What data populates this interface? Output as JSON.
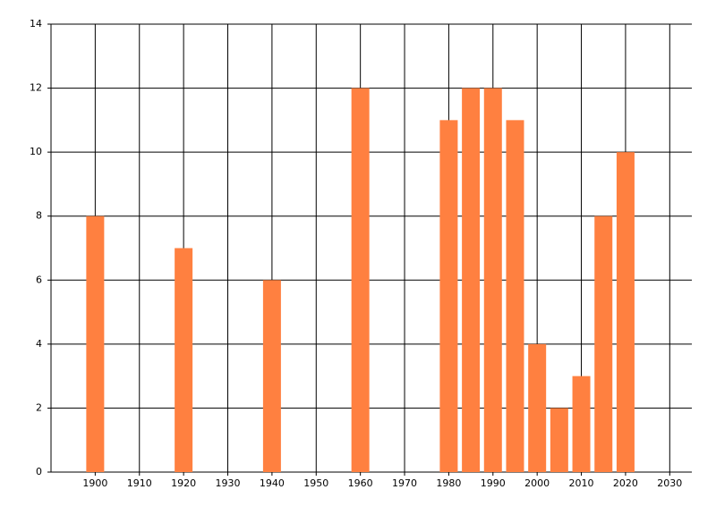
{
  "chart_data": {
    "type": "bar",
    "x": [
      1900,
      1920,
      1940,
      1960,
      1980,
      1985,
      1990,
      1995,
      2000,
      2005,
      2010,
      2015,
      2020
    ],
    "values": [
      8,
      7,
      6,
      12,
      11,
      12,
      12,
      11,
      4,
      2,
      3,
      8,
      10
    ],
    "color": "#ff8040",
    "xlim": [
      1890,
      2035
    ],
    "xticks": [
      1900,
      1910,
      1920,
      1930,
      1940,
      1950,
      1960,
      1970,
      1980,
      1990,
      2000,
      2010,
      2020,
      2030
    ],
    "ylim": [
      0,
      14
    ],
    "yticks": [
      0,
      2,
      4,
      6,
      8,
      10,
      12,
      14
    ],
    "grid": true
  }
}
